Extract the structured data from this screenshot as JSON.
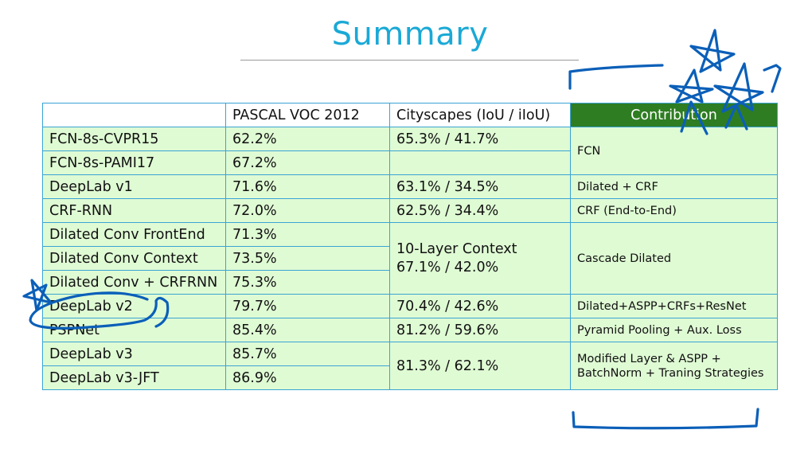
{
  "title": "Summary",
  "table": {
    "headers": [
      "",
      "PASCAL VOC 2012",
      "Cityscapes (IoU / iIoU)",
      "Contribution"
    ],
    "rows": [
      {
        "model": "FCN-8s-CVPR15",
        "voc": "62.2%",
        "city": "65.3% / 41.7%",
        "contribution": "FCN"
      },
      {
        "model": "FCN-8s-PAMI17",
        "voc": "67.2%",
        "city": "",
        "contribution": null
      },
      {
        "model": "DeepLab v1",
        "voc": "71.6%",
        "city": "63.1% / 34.5%",
        "contribution": "Dilated + CRF"
      },
      {
        "model": "CRF-RNN",
        "voc": "72.0%",
        "city": "62.5% / 34.4%",
        "contribution": "CRF (End-to-End)"
      },
      {
        "model": "Dilated Conv FrontEnd",
        "voc": "71.3%",
        "city": "10-Layer Context\n67.1% / 42.0%",
        "contribution": "Cascade Dilated"
      },
      {
        "model": "Dilated Conv Context",
        "voc": "73.5%",
        "city": null,
        "contribution": null
      },
      {
        "model": "Dilated Conv + CRFRNN",
        "voc": "75.3%",
        "city": null,
        "contribution": null
      },
      {
        "model": "DeepLab v2",
        "voc": "79.7%",
        "city": "70.4% / 42.6%",
        "contribution": "Dilated+ASPP+CRFs+ResNet"
      },
      {
        "model": "PSPNet",
        "voc": "85.4%",
        "city": "81.2% / 59.6%",
        "contribution": "Pyramid Pooling + Aux. Loss"
      },
      {
        "model": "DeepLab v3",
        "voc": "85.7%",
        "city": "81.3% / 62.1%",
        "contribution": "Modified Layer & ASPP + BatchNorm + Traning Strategies"
      },
      {
        "model": "DeepLab v3-JFT",
        "voc": "86.9%",
        "city": null,
        "contribution": null
      }
    ]
  },
  "annotations": {
    "ink_color": "#0b5fb8",
    "marks": [
      "star-cluster",
      "bracket-top",
      "bracket-bottom",
      "star-small",
      "circle-around-deeplab-v2"
    ]
  },
  "colors": {
    "title": "#1aa9d6",
    "cell_fill": "#dffbd4",
    "header_fill": "#2e7d22",
    "grid_line": "#3aa3d4"
  }
}
